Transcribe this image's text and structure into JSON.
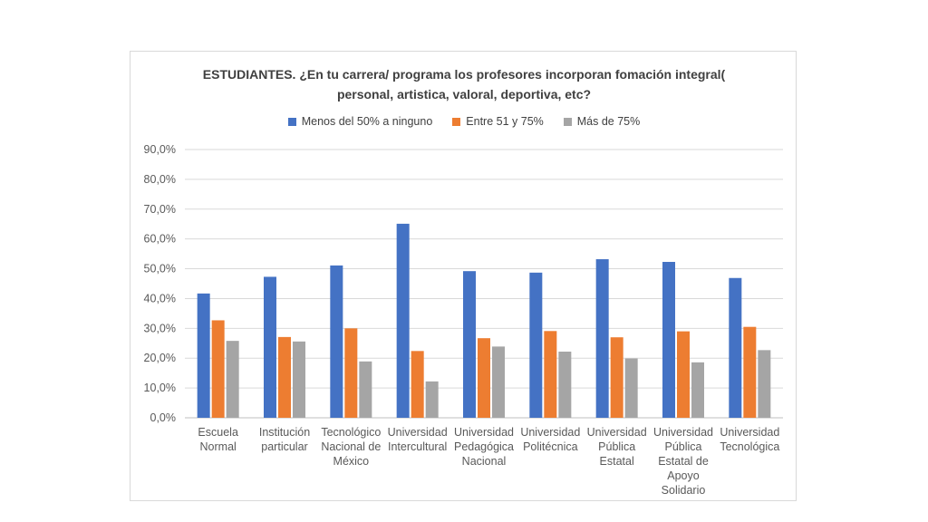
{
  "chart_data": {
    "type": "bar",
    "title": "ESTUDIANTES. ¿En tu carrera/ programa los profesores incorporan fomación integral( personal, artistica, valoral, deportiva, etc?",
    "title_lines": [
      "ESTUDIANTES. ¿En tu carrera/ programa los profesores incorporan fomación integral(",
      "personal, artistica, valoral, deportiva, etc?"
    ],
    "categories": [
      [
        "Escuela",
        "Normal"
      ],
      [
        "Institución",
        "particular"
      ],
      [
        "Tecnológico",
        "Nacional de",
        "México"
      ],
      [
        "Universidad",
        "Intercultural"
      ],
      [
        "Universidad",
        "Pedagógica",
        "Nacional"
      ],
      [
        "Universidad",
        "Politécnica"
      ],
      [
        "Universidad",
        "Pública",
        "Estatal"
      ],
      [
        "Universidad",
        "Pública",
        "Estatal de",
        "Apoyo",
        "Solidario"
      ],
      [
        "Universidad",
        "Tecnológica"
      ]
    ],
    "series": [
      {
        "name": "Menos del 50% a ninguno",
        "color": "#4472c4",
        "values": [
          41.7,
          47.3,
          51.1,
          65.1,
          49.2,
          48.7,
          53.2,
          52.3,
          46.9
        ]
      },
      {
        "name": "Entre 51 y 75%",
        "color": "#ed7d31",
        "values": [
          32.7,
          27.1,
          30.0,
          22.4,
          26.7,
          29.1,
          27.0,
          29.0,
          30.5
        ]
      },
      {
        "name": "Más de 75%",
        "color": "#a5a5a5",
        "values": [
          25.8,
          25.6,
          18.9,
          12.2,
          23.9,
          22.2,
          19.9,
          18.6,
          22.7
        ]
      }
    ],
    "yticks": [
      "0,0%",
      "10,0%",
      "20,0%",
      "30,0%",
      "40,0%",
      "50,0%",
      "60,0%",
      "70,0%",
      "80,0%",
      "90,0%"
    ],
    "ylim": [
      0,
      90
    ],
    "grid": true,
    "legend_position": "top"
  }
}
